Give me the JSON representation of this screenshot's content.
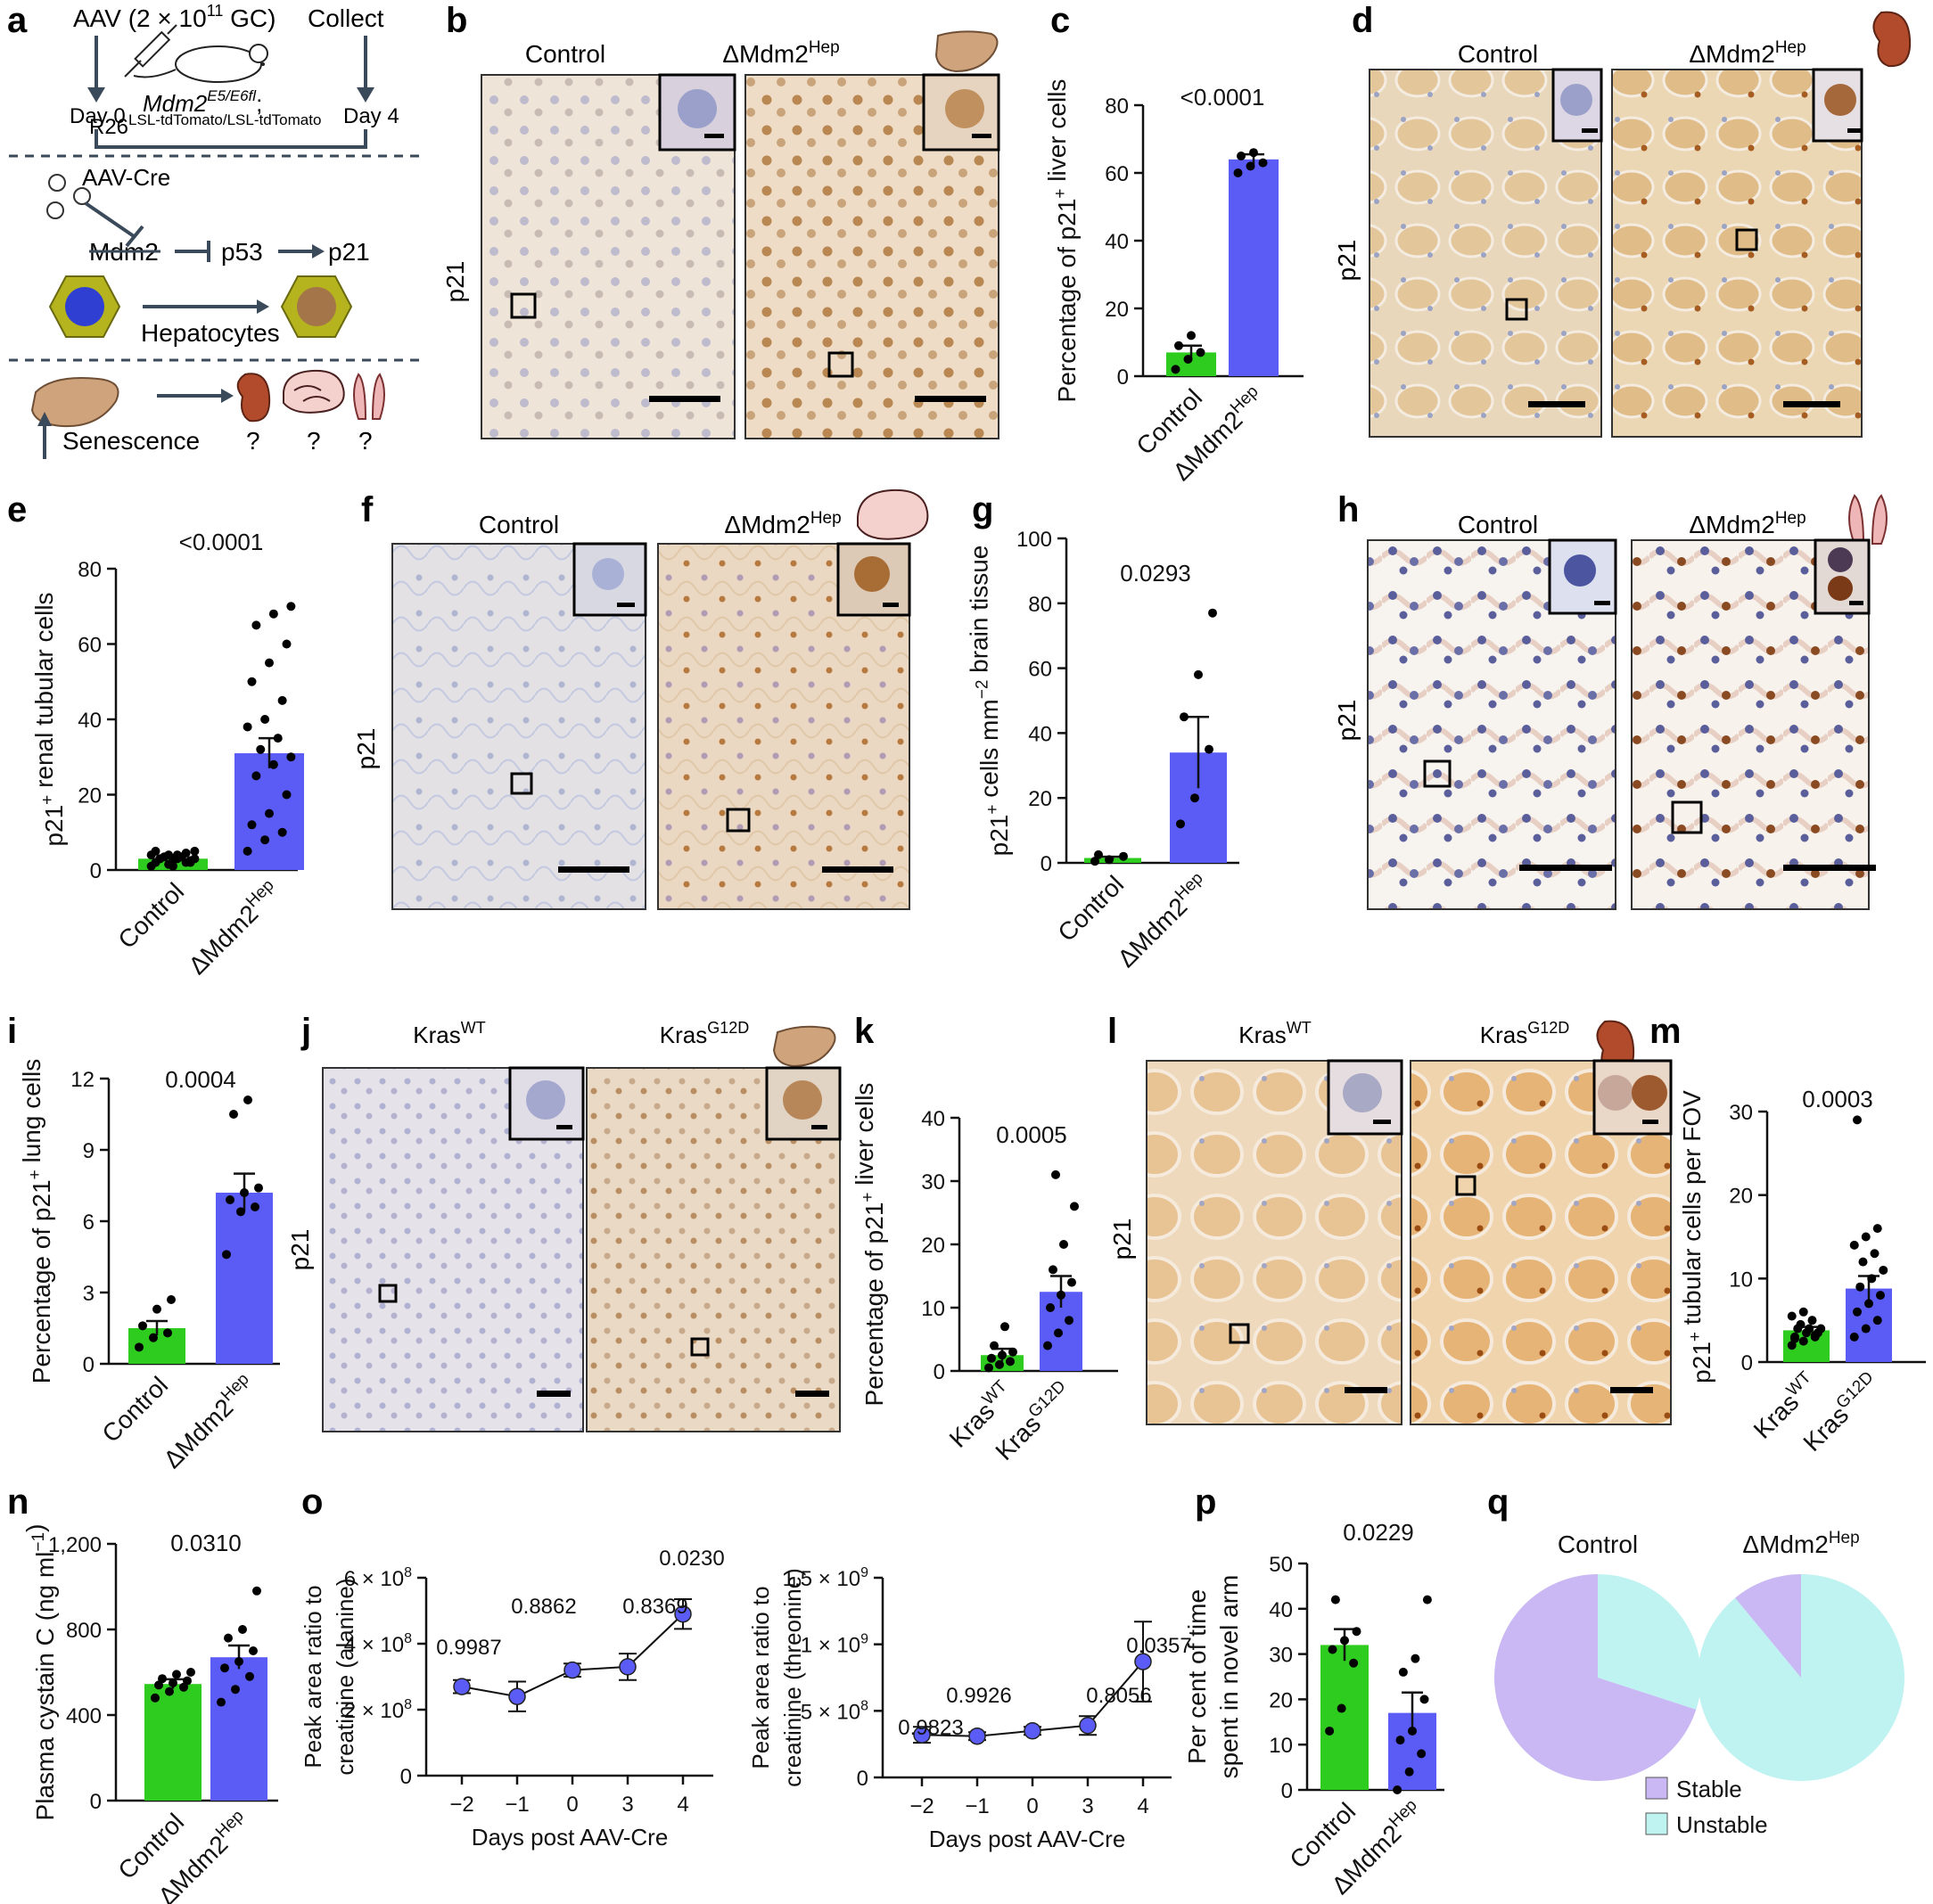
{
  "colors": {
    "control": "#2ecc1f",
    "treated": "#5b5cf5",
    "stable": "#c9b8f3",
    "unstable": "#bff3f1",
    "axis": "#111111",
    "panel_border": "#333333",
    "scale_bar": "#000000",
    "line_point": "#5b5cf5"
  },
  "panel_letters": [
    "a",
    "b",
    "c",
    "d",
    "e",
    "f",
    "g",
    "h",
    "i",
    "j",
    "k",
    "l",
    "m",
    "n",
    "o",
    "p",
    "q"
  ],
  "schematic": {
    "aav_label": "AAV (2 × 10",
    "aav_exp": "11",
    "aav_tail": " GC)",
    "collect_label": "Collect",
    "day0": "Day 0",
    "day4": "Day 4",
    "genotype_line1": "Mdm2",
    "genotype_line1_sup": "E5/E6fl",
    "genotype_line1_tail": ";",
    "genotype_line2": "R26",
    "genotype_line2_sub": "LSL-tdTomato/LSL-tdTomato",
    "aavcre_label": "AAV-Cre",
    "mdm2_label": "Mdm2",
    "p53_label": "p53",
    "p21_label": "p21",
    "hepatocytes_label": "Hepatocytes",
    "senescence_label": "Senescence",
    "question_marks": [
      "?",
      "?",
      "?"
    ],
    "icons": [
      "syringe-icon",
      "mouse-icon",
      "virus-icon",
      "hepatocyte-icon",
      "liver-icon",
      "kidney-icon",
      "brain-icon",
      "lung-icon"
    ]
  },
  "micrographs": {
    "row_label": "p21",
    "b": {
      "left": "Control",
      "right_base": "ΔMdm2",
      "right_sup": "Hep",
      "icon": "liver-icon"
    },
    "d": {
      "left": "Control",
      "right_base": "ΔMdm2",
      "right_sup": "Hep",
      "icon": "kidney-icon"
    },
    "f": {
      "left": "Control",
      "right_base": "ΔMdm2",
      "right_sup": "Hep",
      "icon": "brain-icon"
    },
    "h": {
      "left": "Control",
      "right_base": "ΔMdm2",
      "right_sup": "Hep",
      "icon": "lung-icon"
    },
    "j": {
      "left_base": "Kras",
      "left_sup": "WT",
      "right_base": "Kras",
      "right_sup": "G12D",
      "icon": "liver-icon"
    },
    "l": {
      "left_base": "Kras",
      "left_sup": "WT",
      "right_base": "Kras",
      "right_sup": "G12D",
      "icon": "kidney-icon"
    }
  },
  "chart_data": [
    {
      "panel": "c",
      "type": "bar",
      "categories": [
        "Control",
        "ΔMdm2Hep"
      ],
      "values": [
        7,
        64
      ],
      "errors": [
        2,
        1.5
      ],
      "points": [
        [
          2,
          5,
          7,
          9,
          12
        ],
        [
          60,
          62,
          63,
          65,
          66
        ]
      ],
      "ylabel": "Percentage of p21+ liver cells",
      "ylim": [
        0,
        80
      ],
      "yticks": [
        0,
        20,
        40,
        60,
        80
      ],
      "pvalue": "<0.0001"
    },
    {
      "panel": "e",
      "type": "bar",
      "categories": [
        "Control",
        "ΔMdm2Hep"
      ],
      "values": [
        3,
        31
      ],
      "errors": [
        0.6,
        4
      ],
      "points": [
        [
          1,
          1.5,
          2,
          2,
          2.5,
          2.5,
          3,
          3,
          3,
          3.5,
          3.5,
          4,
          4,
          4.5,
          5,
          1,
          2,
          3,
          4,
          5
        ],
        [
          5,
          8,
          10,
          12,
          15,
          20,
          25,
          28,
          30,
          32,
          35,
          38,
          40,
          45,
          50,
          55,
          60,
          65,
          68,
          70
        ]
      ],
      "ylabel": "p21+ renal tubular cells",
      "ylim": [
        0,
        80
      ],
      "yticks": [
        0,
        20,
        40,
        60,
        80
      ],
      "pvalue": "<0.0001"
    },
    {
      "panel": "g",
      "type": "bar",
      "categories": [
        "Control",
        "ΔMdm2Hep"
      ],
      "values": [
        1.5,
        34
      ],
      "errors": [
        0.4,
        11
      ],
      "points": [
        [
          0.5,
          1,
          2,
          2.5
        ],
        [
          12,
          20,
          35,
          45,
          58,
          77
        ]
      ],
      "ylabel": "p21+ cells mm−2 brain tissue",
      "ylim": [
        0,
        100
      ],
      "yticks": [
        0,
        20,
        40,
        60,
        80,
        100
      ],
      "pvalue": "0.0293"
    },
    {
      "panel": "i",
      "type": "bar",
      "categories": [
        "Control",
        "ΔMdm2Hep"
      ],
      "values": [
        1.5,
        7.2
      ],
      "errors": [
        0.3,
        0.8
      ],
      "points": [
        [
          0.7,
          1.1,
          1.3,
          1.6,
          2.3,
          2.7
        ],
        [
          4.6,
          6.4,
          6.6,
          6.9,
          7.2,
          7.4,
          10.5,
          11.1
        ]
      ],
      "ylabel": "Percentage of p21+ lung cells",
      "ylim": [
        0,
        12
      ],
      "yticks": [
        0,
        3,
        6,
        9,
        12
      ],
      "pvalue": "0.0004"
    },
    {
      "panel": "k",
      "type": "bar",
      "categories": [
        "KrasWT",
        "KrasG12D"
      ],
      "values": [
        2.5,
        12.5
      ],
      "errors": [
        1,
        2.5
      ],
      "points": [
        [
          0.5,
          1,
          1.5,
          2,
          2.5,
          3,
          4,
          7
        ],
        [
          4,
          6,
          8,
          10,
          12,
          14,
          16,
          20,
          26,
          31
        ]
      ],
      "ylabel": "Percentage of p21+ liver cells",
      "ylim": [
        0,
        40
      ],
      "yticks": [
        0,
        10,
        20,
        30,
        40
      ],
      "pvalue": "0.0005"
    },
    {
      "panel": "m",
      "type": "bar",
      "categories": [
        "KrasWT",
        "KrasG12D"
      ],
      "values": [
        3.8,
        8.8
      ],
      "errors": [
        0.4,
        1.5
      ],
      "points": [
        [
          2,
          2.5,
          3,
          3,
          3.5,
          3.5,
          4,
          4,
          4,
          4.5,
          5,
          5.5,
          6,
          3.2,
          2.8
        ],
        [
          3,
          4,
          5,
          6,
          7,
          8,
          9,
          10,
          11,
          12,
          13,
          14,
          15,
          16,
          29
        ]
      ],
      "ylabel": "p21+ tubular cells per FOV",
      "ylim": [
        0,
        30
      ],
      "yticks": [
        0,
        10,
        20,
        30
      ],
      "pvalue": "0.0003"
    },
    {
      "panel": "n",
      "type": "bar",
      "categories": [
        "Control",
        "ΔMdm2Hep"
      ],
      "values": [
        545,
        670
      ],
      "errors": [
        22,
        55
      ],
      "points": [
        [
          480,
          510,
          530,
          540,
          550,
          560,
          570,
          590,
          600
        ],
        [
          460,
          520,
          580,
          620,
          650,
          700,
          760,
          800,
          980
        ]
      ],
      "ylabel": "Plasma cystain C (ng ml−1)",
      "ylim": [
        0,
        1200
      ],
      "yticks": [
        0,
        400,
        800,
        1200
      ],
      "ytick_labels": [
        "0",
        "400",
        "800",
        "1,200"
      ],
      "pvalue": "0.0310"
    },
    {
      "panel": "o1",
      "type": "line",
      "x": [
        -2,
        -1,
        0,
        3,
        4
      ],
      "x_labels": [
        "−2",
        "−1",
        "0",
        "3",
        "4"
      ],
      "values": [
        2.7,
        2.4,
        3.2,
        3.3,
        4.9
      ],
      "errors": [
        0.2,
        0.45,
        0.2,
        0.4,
        0.45
      ],
      "pvalues": [
        "0.9987",
        "0.8862",
        "",
        "0.8369",
        "0.0230"
      ],
      "ylabel_line1": "Peak area ratio to",
      "ylabel_line2": "creatinine (alanine)",
      "xlabel": "Days post AAV-Cre",
      "ylim": [
        0,
        6
      ],
      "yticks": [
        0,
        2,
        4,
        6
      ],
      "ytick_labels": [
        "0",
        "2 × 10",
        "4 × 10",
        "6 × 10"
      ],
      "ytick_exp": [
        "",
        "8",
        "8",
        "8"
      ]
    },
    {
      "panel": "o2",
      "type": "line",
      "x": [
        -2,
        -1,
        0,
        3,
        4
      ],
      "x_labels": [
        "−2",
        "−1",
        "0",
        "3",
        "4"
      ],
      "values": [
        0.32,
        0.31,
        0.35,
        0.39,
        0.87
      ],
      "errors": [
        0.06,
        0.03,
        0.03,
        0.07,
        0.3
      ],
      "pvalues": [
        "0.9823",
        "0.9926",
        "",
        "0.8056",
        "0.0357"
      ],
      "ylabel_line1": "Peak area ratio to",
      "ylabel_line2": "creatinine (threonine)",
      "xlabel": "Days post AAV-Cre",
      "ylim": [
        0,
        1.5
      ],
      "yticks": [
        0,
        0.5,
        1.0,
        1.5
      ],
      "ytick_labels": [
        "0",
        "5 × 10",
        "1 × 10",
        "1.5 × 10"
      ],
      "ytick_exp": [
        "",
        "8",
        "9",
        "9"
      ]
    },
    {
      "panel": "p",
      "type": "bar",
      "categories": [
        "Control",
        "ΔMdm2Hep"
      ],
      "values": [
        32,
        17
      ],
      "errors": [
        3.5,
        4.5
      ],
      "points": [
        [
          13,
          18,
          28,
          31,
          33,
          35,
          42
        ],
        [
          0,
          4,
          8,
          11,
          13,
          20,
          26,
          29,
          42
        ]
      ],
      "ylabel_line1": "Per cent of time",
      "ylabel_line2": "spent in novel arm",
      "ylim": [
        0,
        50
      ],
      "yticks": [
        0,
        10,
        20,
        30,
        40,
        50
      ],
      "pvalue": "0.0229"
    },
    {
      "panel": "q",
      "type": "pie",
      "pies": [
        {
          "title_base": "Control",
          "title_sup": "",
          "slices": [
            {
              "label": "Stable",
              "value": 70
            },
            {
              "label": "Unstable",
              "value": 30
            }
          ]
        },
        {
          "title_base": "ΔMdm2",
          "title_sup": "Hep",
          "slices": [
            {
              "label": "Stable",
              "value": 11
            },
            {
              "label": "Unstable",
              "value": 89
            }
          ]
        }
      ],
      "legend": [
        "Stable",
        "Unstable"
      ]
    }
  ]
}
